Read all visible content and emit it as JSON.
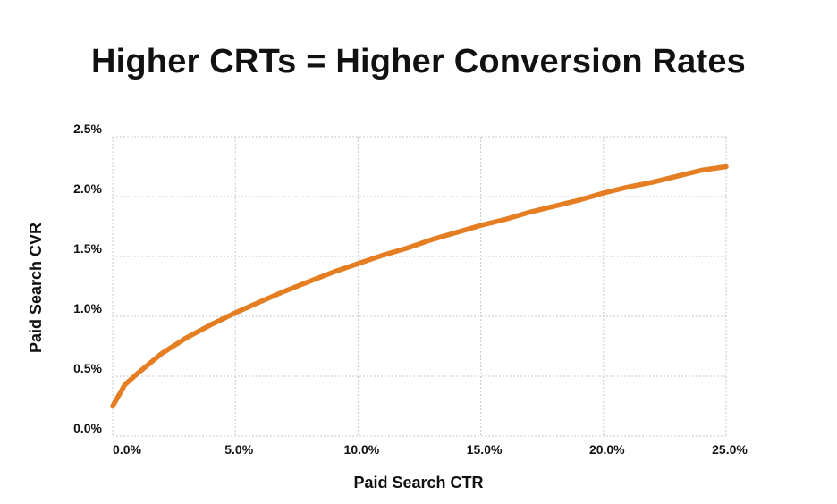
{
  "chart_data": {
    "type": "line",
    "title": "Higher CRTs = Higher Conversion Rates",
    "xlabel": "Paid Search CTR",
    "ylabel": "Paid Search CVR",
    "xlim": [
      0,
      25
    ],
    "ylim": [
      0,
      2.5
    ],
    "x_ticks": [
      "0.0%",
      "5.0%",
      "10.0%",
      "15.0%",
      "20.0%",
      "25.0%"
    ],
    "y_ticks": [
      "0.0%",
      "0.5%",
      "1.0%",
      "1.5%",
      "2.0%",
      "2.5%"
    ],
    "grid": true,
    "series": [
      {
        "color": "#E57E22",
        "x": [
          0,
          0.5,
          1,
          2,
          3,
          4,
          5,
          6,
          7,
          8,
          9,
          10,
          11,
          12,
          13,
          14,
          15,
          16,
          17,
          18,
          19,
          20,
          21,
          22,
          23,
          24,
          25
        ],
        "y": [
          0.25,
          0.43,
          0.52,
          0.69,
          0.82,
          0.93,
          1.03,
          1.12,
          1.21,
          1.29,
          1.37,
          1.44,
          1.51,
          1.57,
          1.64,
          1.7,
          1.76,
          1.81,
          1.87,
          1.92,
          1.97,
          2.03,
          2.08,
          2.12,
          2.17,
          2.22,
          2.25
        ]
      }
    ]
  }
}
